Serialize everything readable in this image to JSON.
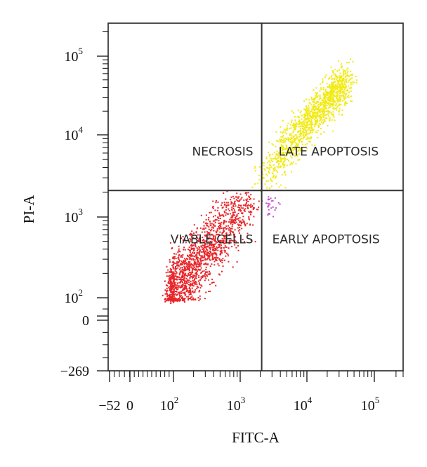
{
  "chart_data": {
    "type": "scatter",
    "xlabel": "FITC-A",
    "ylabel": "PI-A",
    "x_scale": "biexponential",
    "y_scale": "biexponential",
    "xlim": [
      -52,
      250000
    ],
    "ylim": [
      -269,
      250000
    ],
    "x_ticks": [
      {
        "value": -52,
        "base": "−52",
        "exp": ""
      },
      {
        "value": 0,
        "base": "0",
        "exp": ""
      },
      {
        "value": 100,
        "base": "10",
        "exp": "2"
      },
      {
        "value": 1000,
        "base": "10",
        "exp": "3"
      },
      {
        "value": 10000,
        "base": "10",
        "exp": "4"
      },
      {
        "value": 100000,
        "base": "10",
        "exp": "5"
      }
    ],
    "y_ticks": [
      {
        "value": -269,
        "base": "−269",
        "exp": ""
      },
      {
        "value": 0,
        "base": "0",
        "exp": ""
      },
      {
        "value": 100,
        "base": "10",
        "exp": "2"
      },
      {
        "value": 1000,
        "base": "10",
        "exp": "3"
      },
      {
        "value": 10000,
        "base": "10",
        "exp": "4"
      },
      {
        "value": 100000,
        "base": "10",
        "exp": "5"
      }
    ],
    "gates": {
      "x": 2100,
      "y": 2100
    },
    "quadrants": [
      {
        "name": "NECROSIS",
        "position": "top-left"
      },
      {
        "name": "LATE APOPTOSIS",
        "position": "top-right"
      },
      {
        "name": "VIABLE CELLS",
        "position": "bottom-left"
      },
      {
        "name": "EARLY APOPTOSIS",
        "position": "bottom-right"
      }
    ],
    "populations": [
      {
        "quadrant": "bottom-left",
        "color": "#e8262a",
        "center_log": [
          2.9,
          3.0
        ],
        "count": 1600
      },
      {
        "quadrant": "top-right",
        "color": "#f2ea12",
        "center_log": [
          3.55,
          3.6
        ],
        "count": 1300
      },
      {
        "quadrant": "bottom-right",
        "color": "#c24fd0",
        "center_log": [
          3.4,
          3.25
        ],
        "count": 25
      }
    ],
    "grid": false,
    "legend": "none"
  }
}
